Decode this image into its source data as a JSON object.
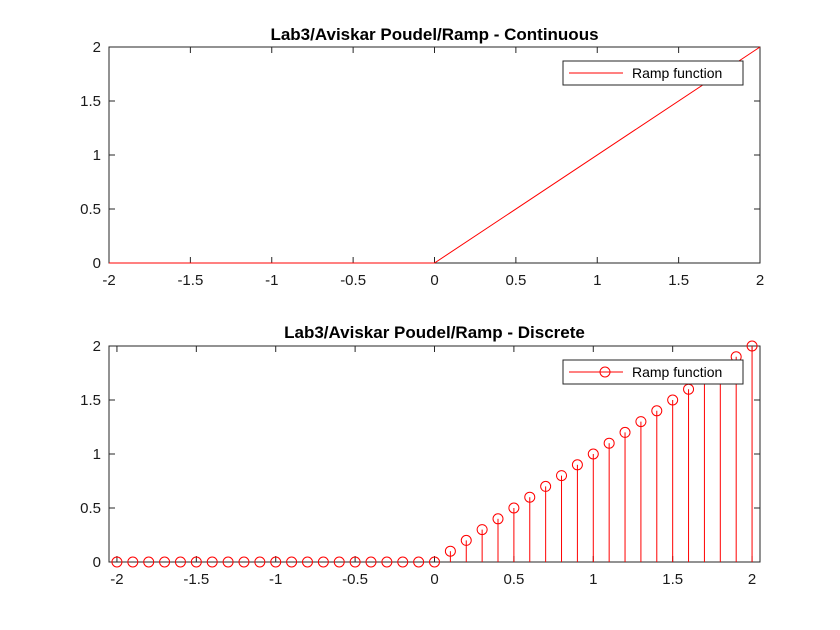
{
  "chart_data": [
    {
      "type": "line",
      "title": "Lab3/Aviskar Poudel/Ramp - Continuous",
      "xlim": [
        -2,
        2
      ],
      "ylim": [
        0,
        2
      ],
      "xticks": [
        "-2",
        "-1.5",
        "-1",
        "-0.5",
        "0",
        "0.5",
        "1",
        "1.5",
        "2"
      ],
      "yticks": [
        "0",
        "0.5",
        "1",
        "1.5",
        "2"
      ],
      "grid": false,
      "legend": {
        "position": "top-right",
        "entries": [
          "Ramp function"
        ]
      },
      "series": [
        {
          "name": "Ramp function",
          "color": "#ff0000",
          "x": [
            -2,
            0,
            2
          ],
          "y": [
            0,
            0,
            2
          ]
        }
      ]
    },
    {
      "type": "stem",
      "title": "Lab3/Aviskar Poudel/Ramp - Discrete",
      "xlim": [
        -2.05,
        2.05
      ],
      "ylim": [
        0,
        2
      ],
      "xticks": [
        "-2",
        "-1.5",
        "-1",
        "-0.5",
        "0",
        "0.5",
        "1",
        "1.5",
        "2"
      ],
      "yticks": [
        "0",
        "0.5",
        "1",
        "1.5",
        "2"
      ],
      "grid": false,
      "legend": {
        "position": "top-right",
        "entries": [
          "Ramp function"
        ]
      },
      "series": [
        {
          "name": "Ramp function",
          "color": "#ff0000",
          "marker": "circle",
          "x": [
            -2,
            -1.9,
            -1.8,
            -1.7,
            -1.6,
            -1.5,
            -1.4,
            -1.3,
            -1.2,
            -1.1,
            -1,
            -0.9,
            -0.8,
            -0.7,
            -0.6,
            -0.5,
            -0.4,
            -0.3,
            -0.2,
            -0.1,
            0,
            0.1,
            0.2,
            0.3,
            0.4,
            0.5,
            0.6,
            0.7,
            0.8,
            0.9,
            1,
            1.1,
            1.2,
            1.3,
            1.4,
            1.5,
            1.6,
            1.7,
            1.8,
            1.9,
            2
          ],
          "y": [
            0,
            0,
            0,
            0,
            0,
            0,
            0,
            0,
            0,
            0,
            0,
            0,
            0,
            0,
            0,
            0,
            0,
            0,
            0,
            0,
            0,
            0.1,
            0.2,
            0.3,
            0.4,
            0.5,
            0.6,
            0.7,
            0.8,
            0.9,
            1,
            1.1,
            1.2,
            1.3,
            1.4,
            1.5,
            1.6,
            1.7,
            1.8,
            1.9,
            2
          ]
        }
      ]
    }
  ]
}
